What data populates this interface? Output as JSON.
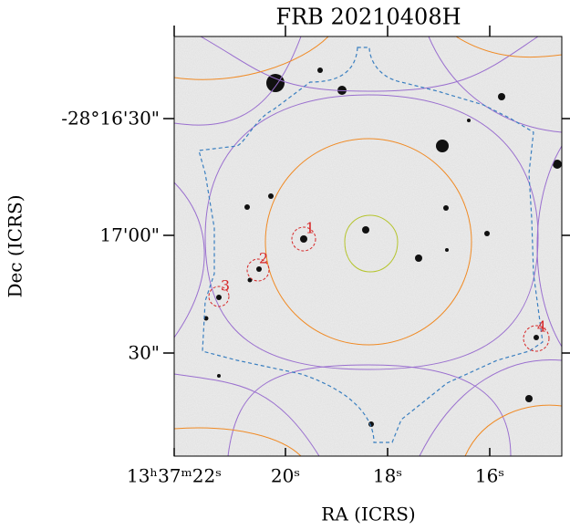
{
  "title": "FRB 20210408H",
  "x_axis": {
    "label": "RA (ICRS)",
    "ticks": [
      "13ʰ37ᵐ22ˢ",
      "20ˢ",
      "18ˢ",
      "16ˢ"
    ]
  },
  "y_axis": {
    "label": "Dec (ICRS)",
    "ticks": [
      "-28°16'30\"",
      "17'00\"",
      "30\""
    ]
  },
  "candidates": [
    "1",
    "2",
    "3",
    "4"
  ]
}
